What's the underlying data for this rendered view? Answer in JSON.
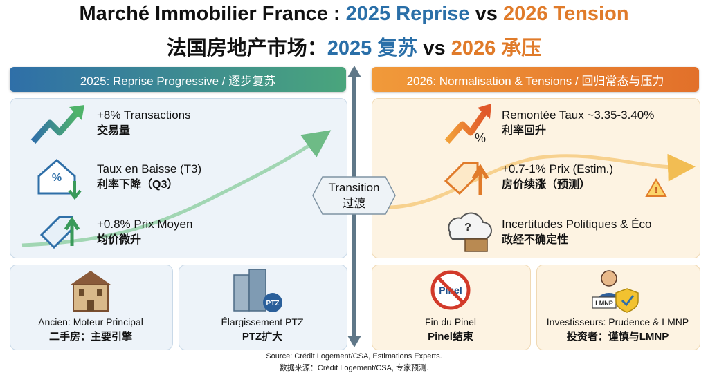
{
  "title": {
    "line1": [
      "Marché Immobilier France : ",
      "2025 Reprise",
      " vs ",
      "2026 Tension"
    ],
    "line2": [
      "法国房地产市场：",
      "2025 复苏",
      " vs ",
      "2026 承压"
    ]
  },
  "left": {
    "header": "2025: Reprise Progressive / 逐步复苏",
    "items": [
      {
        "fr": "+8% Transactions",
        "zh": "交易量"
      },
      {
        "fr": "Taux en Baisse (T3)",
        "zh": "利率下降（Q3）"
      },
      {
        "fr": "+0.8% Prix Moyen",
        "zh": "均价微升"
      }
    ],
    "cards": [
      {
        "fr": "Ancien: Moteur Principal",
        "zh": "二手房：主要引擎"
      },
      {
        "fr": "Élargissement PTZ",
        "zh": "PTZ扩大"
      }
    ]
  },
  "transition": {
    "fr": "Transition",
    "zh": "过渡"
  },
  "right": {
    "header": "2026: Normalisation & Tensions / 回归常态与压力",
    "items": [
      {
        "fr": "Remontée Taux ~3.35-3.40%",
        "zh": "利率回升"
      },
      {
        "fr": "+0.7-1% Prix (Estim.)",
        "zh": "房价续涨（预测）"
      },
      {
        "fr": "Incertitudes Politiques & Éco",
        "zh": "政经不确定性"
      }
    ],
    "cards": [
      {
        "fr": "Fin du Pinel",
        "zh": "Pinel结束"
      },
      {
        "fr": "Investisseurs: Prudence & LMNP",
        "zh": "投资者：谨慎与LMNP"
      }
    ]
  },
  "icon_labels": {
    "percent": "%",
    "ptz": "PTZ",
    "pinel": "Pinel",
    "lmnp": "LMNP",
    "question": "?",
    "warning": "!"
  },
  "source": [
    "Source: Crédit Logement/CSA, Estimations Experts.",
    "数据来源：Crédit Logement/CSA, 专家预测."
  ]
}
